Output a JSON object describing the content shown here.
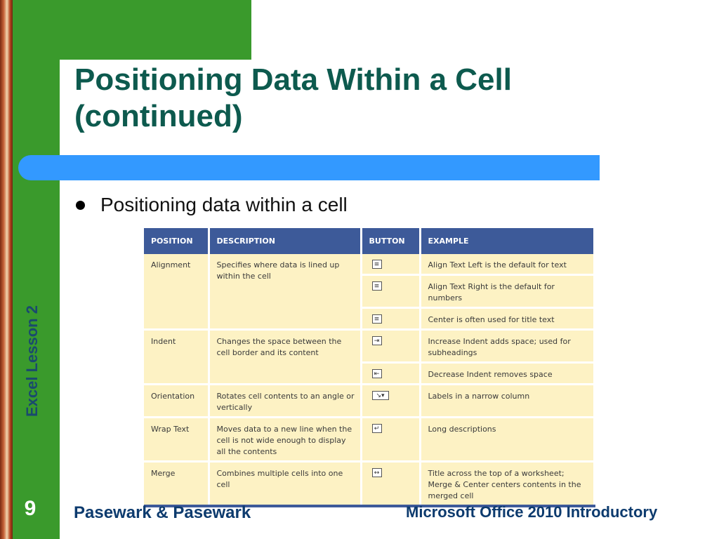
{
  "slide": {
    "title": "Positioning Data Within a Cell (continued)",
    "side_label": "Excel Lesson 2",
    "page_number": "9",
    "footer_left": "Pasewark & Pasewark",
    "footer_right": "Microsoft Office 2010 Introductory",
    "bullet": "Positioning data within a cell"
  },
  "table": {
    "headers": [
      "POSITION",
      "DESCRIPTION",
      "BUTTON",
      "EXAMPLE"
    ],
    "groups": [
      {
        "position": "Alignment",
        "description": "Specifies where data is lined up within the cell",
        "rows": [
          {
            "button_icon": "align-left-icon",
            "example": "Align Text Left is the default for text"
          },
          {
            "button_icon": "align-right-icon",
            "example": "Align Text Right is the default for numbers"
          },
          {
            "button_icon": "align-center-icon",
            "example": "Center is often used for title text"
          }
        ]
      },
      {
        "position": "Indent",
        "description": "Changes the space between the cell border and its content",
        "rows": [
          {
            "button_icon": "increase-indent-icon",
            "example": "Increase Indent adds space; used for subheadings"
          },
          {
            "button_icon": "decrease-indent-icon",
            "example": "Decrease Indent removes space"
          }
        ]
      },
      {
        "position": "Orientation",
        "description": "Rotates cell contents to an angle or vertically",
        "rows": [
          {
            "button_icon": "orientation-icon",
            "example": "Labels in a narrow column"
          }
        ]
      },
      {
        "position": "Wrap Text",
        "description": "Moves data to a new line when the cell is not wide enough to display all the contents",
        "rows": [
          {
            "button_icon": "wrap-text-icon",
            "example": "Long descriptions"
          }
        ]
      },
      {
        "position": "Merge",
        "description": "Combines multiple cells into one cell",
        "rows": [
          {
            "button_icon": "merge-cells-icon",
            "example": "Title across the top of a worksheet; Merge & Center centers contents in the merged cell"
          }
        ]
      }
    ]
  }
}
